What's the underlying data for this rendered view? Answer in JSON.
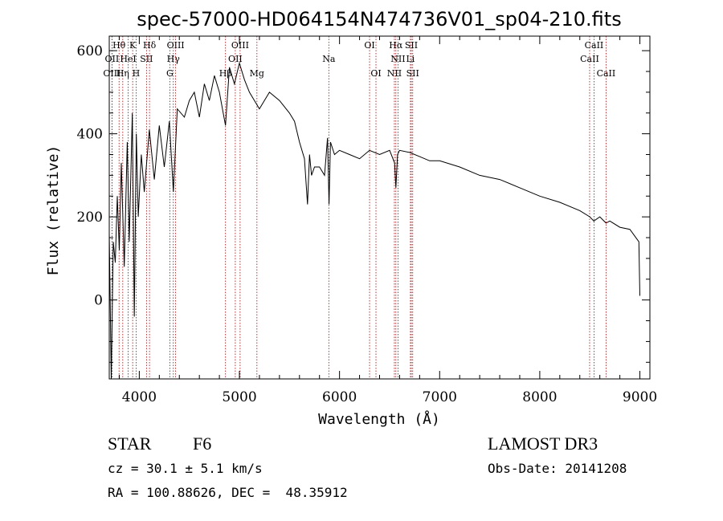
{
  "chart_data": {
    "type": "line",
    "title": "spec-57000-HD064154N474736V01_sp04-210.fits",
    "xlabel": "Wavelength (Å)",
    "ylabel": "Flux (relative)",
    "xlim": [
      3700,
      9100
    ],
    "ylim": [
      -190,
      635
    ],
    "xticks": [
      4000,
      5000,
      6000,
      7000,
      8000,
      9000
    ],
    "yticks": [
      0,
      200,
      400,
      600
    ],
    "grid": false,
    "series": [
      {
        "name": "spectrum",
        "x": [
          3700,
          3720,
          3740,
          3760,
          3780,
          3800,
          3820,
          3850,
          3880,
          3900,
          3930,
          3950,
          3970,
          3990,
          4020,
          4050,
          4100,
          4150,
          4200,
          4250,
          4300,
          4340,
          4380,
          4450,
          4500,
          4550,
          4600,
          4650,
          4700,
          4750,
          4800,
          4861,
          4900,
          4950,
          5000,
          5050,
          5100,
          5150,
          5200,
          5300,
          5400,
          5500,
          5550,
          5600,
          5650,
          5680,
          5700,
          5720,
          5750,
          5800,
          5850,
          5880,
          5895,
          5910,
          5950,
          6000,
          6100,
          6200,
          6300,
          6400,
          6500,
          6550,
          6563,
          6580,
          6600,
          6700,
          6800,
          6900,
          7000,
          7200,
          7400,
          7600,
          7800,
          8000,
          8200,
          8400,
          8500,
          8540,
          8600,
          8662,
          8700,
          8800,
          8900,
          8990,
          9000
        ],
        "y": [
          160,
          -190,
          140,
          90,
          250,
          120,
          330,
          80,
          380,
          140,
          450,
          -40,
          400,
          200,
          350,
          260,
          410,
          290,
          420,
          320,
          430,
          260,
          460,
          440,
          480,
          500,
          440,
          520,
          480,
          540,
          500,
          420,
          560,
          520,
          570,
          530,
          500,
          480,
          460,
          500,
          480,
          450,
          430,
          380,
          340,
          230,
          350,
          300,
          320,
          320,
          300,
          390,
          230,
          380,
          350,
          360,
          350,
          340,
          360,
          350,
          360,
          330,
          270,
          350,
          360,
          355,
          345,
          335,
          335,
          320,
          300,
          290,
          270,
          250,
          235,
          215,
          200,
          190,
          200,
          185,
          190,
          175,
          170,
          140,
          10
        ]
      }
    ],
    "spectral_lines": [
      {
        "label": "Hθ",
        "x": 3798,
        "row": 1
      },
      {
        "label": "K",
        "x": 3934,
        "row": 1
      },
      {
        "label": "Hδ",
        "x": 4102,
        "row": 1
      },
      {
        "label": "OIII",
        "x": 4363,
        "row": 1
      },
      {
        "label": "OIII",
        "x": 5007,
        "row": 1
      },
      {
        "label": "OI",
        "x": 6300,
        "row": 1
      },
      {
        "label": "Hα",
        "x": 6563,
        "row": 1
      },
      {
        "label": "SII",
        "x": 6717,
        "row": 1
      },
      {
        "label": "CaII",
        "x": 8542,
        "row": 1
      },
      {
        "label": "OII",
        "x": 3727,
        "row": 2
      },
      {
        "label": "HeI",
        "x": 3889,
        "row": 2
      },
      {
        "label": "SII",
        "x": 4072,
        "row": 2
      },
      {
        "label": "Hγ",
        "x": 4340,
        "row": 2
      },
      {
        "label": "OII",
        "x": 4959,
        "row": 2
      },
      {
        "label": "Na",
        "x": 5893,
        "row": 2
      },
      {
        "label": "NII",
        "x": 6584,
        "row": 2
      },
      {
        "label": "Li",
        "x": 6708,
        "row": 2
      },
      {
        "label": "CaII",
        "x": 8498,
        "row": 2
      },
      {
        "label": "OIII",
        "x": 3727,
        "row": 3
      },
      {
        "label": "Hη",
        "x": 3835,
        "row": 3
      },
      {
        "label": "H",
        "x": 3968,
        "row": 3
      },
      {
        "label": "G",
        "x": 4305,
        "row": 3
      },
      {
        "label": "Hβ",
        "x": 4861,
        "row": 3
      },
      {
        "label": "Mg",
        "x": 5175,
        "row": 3
      },
      {
        "label": "OI",
        "x": 6364,
        "row": 3
      },
      {
        "label": "NII",
        "x": 6548,
        "row": 3
      },
      {
        "label": "SII",
        "x": 6731,
        "row": 3
      },
      {
        "label": "CaII",
        "x": 8662,
        "row": 3
      }
    ]
  },
  "info": {
    "object_class": "STAR",
    "subclass": "F6",
    "survey": "LAMOST DR3",
    "redshift": "cz = 30.1 ± 5.1 km/s",
    "obs_date": "Obs-Date: 20141208",
    "coords": "RA = 100.88626, DEC =  48.35912"
  },
  "colors": {
    "line_marker": "#b00000",
    "spectrum": "#000000"
  }
}
